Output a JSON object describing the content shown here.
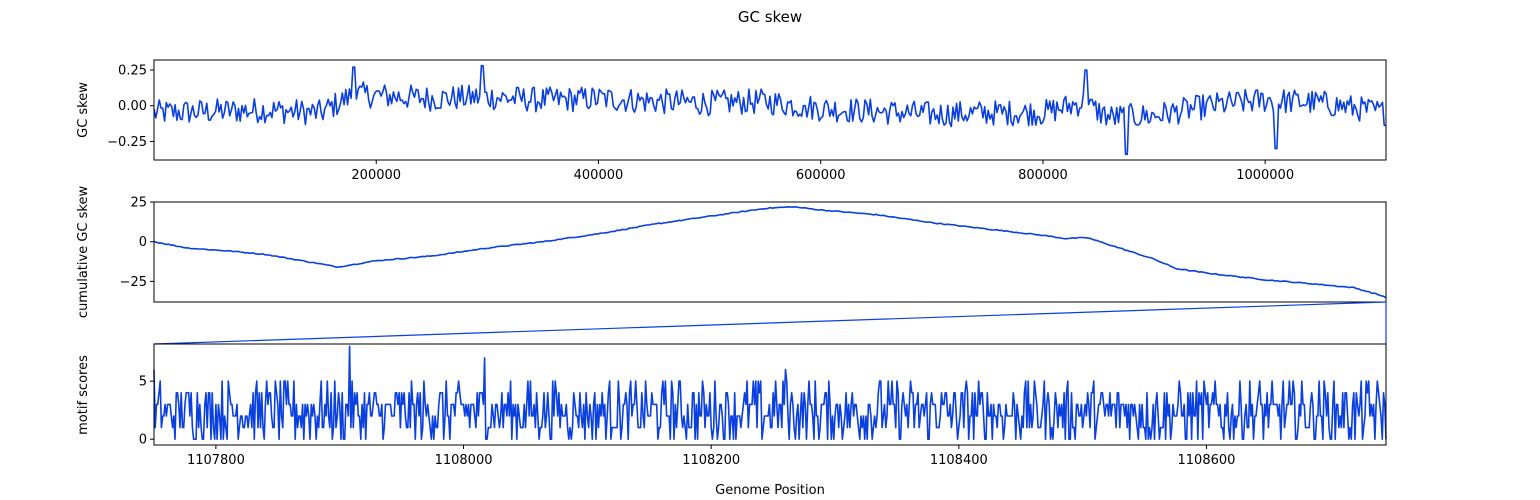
{
  "figure": {
    "title": "GC skew",
    "xlabel": "Genome Position"
  },
  "colors": {
    "series": "#0a3fe0",
    "axes": "#000000",
    "background": "#ffffff"
  },
  "chart_data": [
    {
      "type": "line",
      "ylabel": "GC skew",
      "xlim": [
        1,
        1108745
      ],
      "ylim": [
        -0.38,
        0.32
      ],
      "xticks": [
        200000,
        400000,
        600000,
        800000,
        1000000
      ],
      "yticks": [
        -0.25,
        0.0,
        0.25
      ],
      "ytick_labels": [
        "−0.25",
        "0.00",
        "0.25"
      ],
      "grid": false,
      "sampled_points": [
        [
          0,
          -0.05
        ],
        [
          50000,
          -0.04
        ],
        [
          100000,
          -0.03
        ],
        [
          150000,
          -0.05
        ],
        [
          180000,
          0.08
        ],
        [
          250000,
          0.05
        ],
        [
          300000,
          0.06
        ],
        [
          350000,
          0.04
        ],
        [
          400000,
          0.05
        ],
        [
          450000,
          0.03
        ],
        [
          500000,
          0.02
        ],
        [
          550000,
          0.03
        ],
        [
          600000,
          -0.02
        ],
        [
          650000,
          -0.04
        ],
        [
          700000,
          -0.06
        ],
        [
          750000,
          -0.05
        ],
        [
          800000,
          -0.05
        ],
        [
          835000,
          0.02
        ],
        [
          860000,
          -0.08
        ],
        [
          900000,
          -0.07
        ],
        [
          950000,
          0.0
        ],
        [
          1000000,
          0.04
        ],
        [
          1050000,
          0.02
        ],
        [
          1108745,
          -0.05
        ]
      ],
      "extremes": [
        [
          180000,
          0.27
        ],
        [
          295000,
          0.28
        ],
        [
          585000,
          0.0
        ],
        [
          838000,
          0.25
        ],
        [
          875000,
          -0.34
        ],
        [
          1010000,
          -0.3
        ]
      ],
      "noise_amplitude": 0.09
    },
    {
      "type": "line",
      "ylabel": "cumulative GC skew",
      "xlim": [
        1,
        1108745
      ],
      "ylim": [
        -38,
        25
      ],
      "xticks": [],
      "yticks": [
        -25,
        0,
        25
      ],
      "ytick_labels": [
        "−25",
        "0",
        "25"
      ],
      "grid": false,
      "points": [
        [
          0,
          0
        ],
        [
          30000,
          -4
        ],
        [
          70000,
          -6
        ],
        [
          100000,
          -8
        ],
        [
          150000,
          -14
        ],
        [
          165000,
          -16
        ],
        [
          200000,
          -12
        ],
        [
          250000,
          -9
        ],
        [
          300000,
          -4
        ],
        [
          350000,
          0
        ],
        [
          400000,
          5
        ],
        [
          450000,
          11
        ],
        [
          500000,
          16
        ],
        [
          550000,
          21
        ],
        [
          575000,
          22
        ],
        [
          600000,
          20
        ],
        [
          650000,
          17
        ],
        [
          700000,
          12
        ],
        [
          750000,
          8
        ],
        [
          800000,
          4
        ],
        [
          820000,
          2
        ],
        [
          840000,
          2.5
        ],
        [
          860000,
          -2
        ],
        [
          900000,
          -11
        ],
        [
          920000,
          -17
        ],
        [
          950000,
          -20
        ],
        [
          1000000,
          -24
        ],
        [
          1050000,
          -27
        ],
        [
          1080000,
          -29
        ],
        [
          1100000,
          -33
        ],
        [
          1108745,
          -35
        ]
      ]
    },
    {
      "type": "line",
      "ylabel": "motif scores",
      "xlim": [
        1107750,
        1108745
      ],
      "ylim": [
        -0.5,
        8.2
      ],
      "xticks": [
        1107800,
        1108000,
        1108200,
        1108400,
        1108600
      ],
      "yticks": [
        0,
        5
      ],
      "grid": false,
      "value_range": [
        0,
        8
      ],
      "peaks": [
        [
          1107750,
          6
        ],
        [
          1107908,
          8
        ],
        [
          1108017,
          7
        ],
        [
          1108260,
          6
        ]
      ],
      "typical_values": [
        0,
        1,
        2,
        3,
        4,
        5
      ]
    }
  ]
}
